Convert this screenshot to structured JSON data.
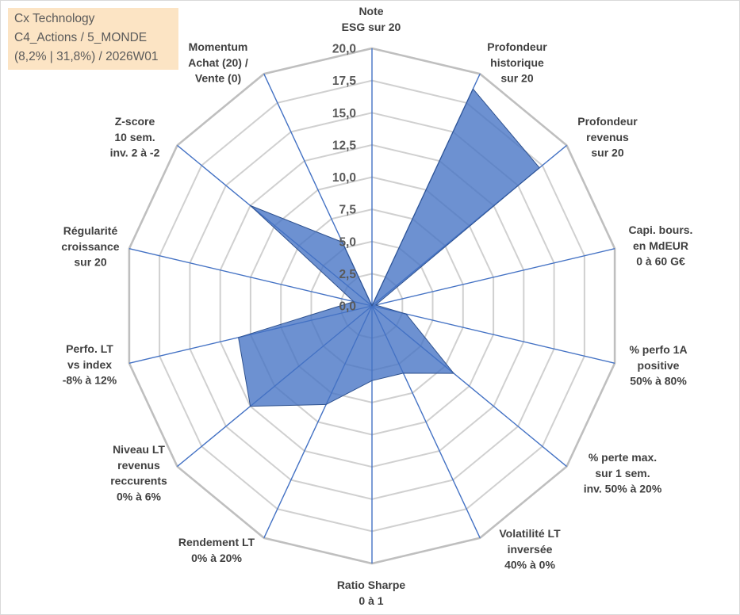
{
  "chart_data": {
    "type": "radar",
    "title": "Cx Technology",
    "subtitle": [
      "C4_Actions / 5_MONDE",
      "(8,2% | 31,8%) / 2026W01"
    ],
    "categories": [
      [
        "Note",
        "ESG sur 20"
      ],
      [
        "Profondeur",
        "historique",
        "sur 20"
      ],
      [
        "Profondeur",
        "revenus",
        "sur 20"
      ],
      [
        "Capi. bours.",
        "en MdEUR",
        "0 à 60 G€"
      ],
      [
        "% perfo 1A",
        "positive",
        "50% à 80%"
      ],
      [
        "% perte max.",
        "sur 1 sem.",
        "inv. 50% à 20%"
      ],
      [
        "Volatilité LT",
        "inversée",
        "40% à 0%"
      ],
      [
        "Ratio Sharpe",
        "0 à 1"
      ],
      [
        "Rendement LT",
        "0% à 20%"
      ],
      [
        "Niveau LT",
        "revenus",
        "reccurents",
        "0% à 6%"
      ],
      [
        "Perfo. LT",
        "vs index",
        "-8% à 12%"
      ],
      [
        "Régularité",
        "croissance",
        "sur 20"
      ],
      [
        "Z-score",
        "10 sem.",
        "inv. 2 à -2"
      ],
      [
        "Momentum",
        "Achat (20) /",
        "Vente (0)"
      ]
    ],
    "values": [
      0.0,
      18.7,
      17.2,
      0.3,
      2.8,
      8.4,
      5.8,
      5.8,
      8.5,
      12.5,
      11.0,
      1.5,
      12.5,
      5.5
    ],
    "rlim": [
      0,
      20
    ],
    "r_ticks": [
      0,
      2.5,
      5,
      7.5,
      10,
      12.5,
      15,
      17.5,
      20
    ],
    "r_tick_labels": [
      "0,0",
      "2,5",
      "5,0",
      "7,5",
      "10,0",
      "12,5",
      "15,0",
      "17,5",
      "20,0"
    ],
    "grid": true,
    "legend": "none",
    "colors": {
      "axis": "#4472C4",
      "grid": "#D0D0D0",
      "grid_outer": "#BFBFBF",
      "series_fill": "#4472C4",
      "series_line": "#2F528F",
      "info_box_background": "#FCE4C4"
    }
  }
}
